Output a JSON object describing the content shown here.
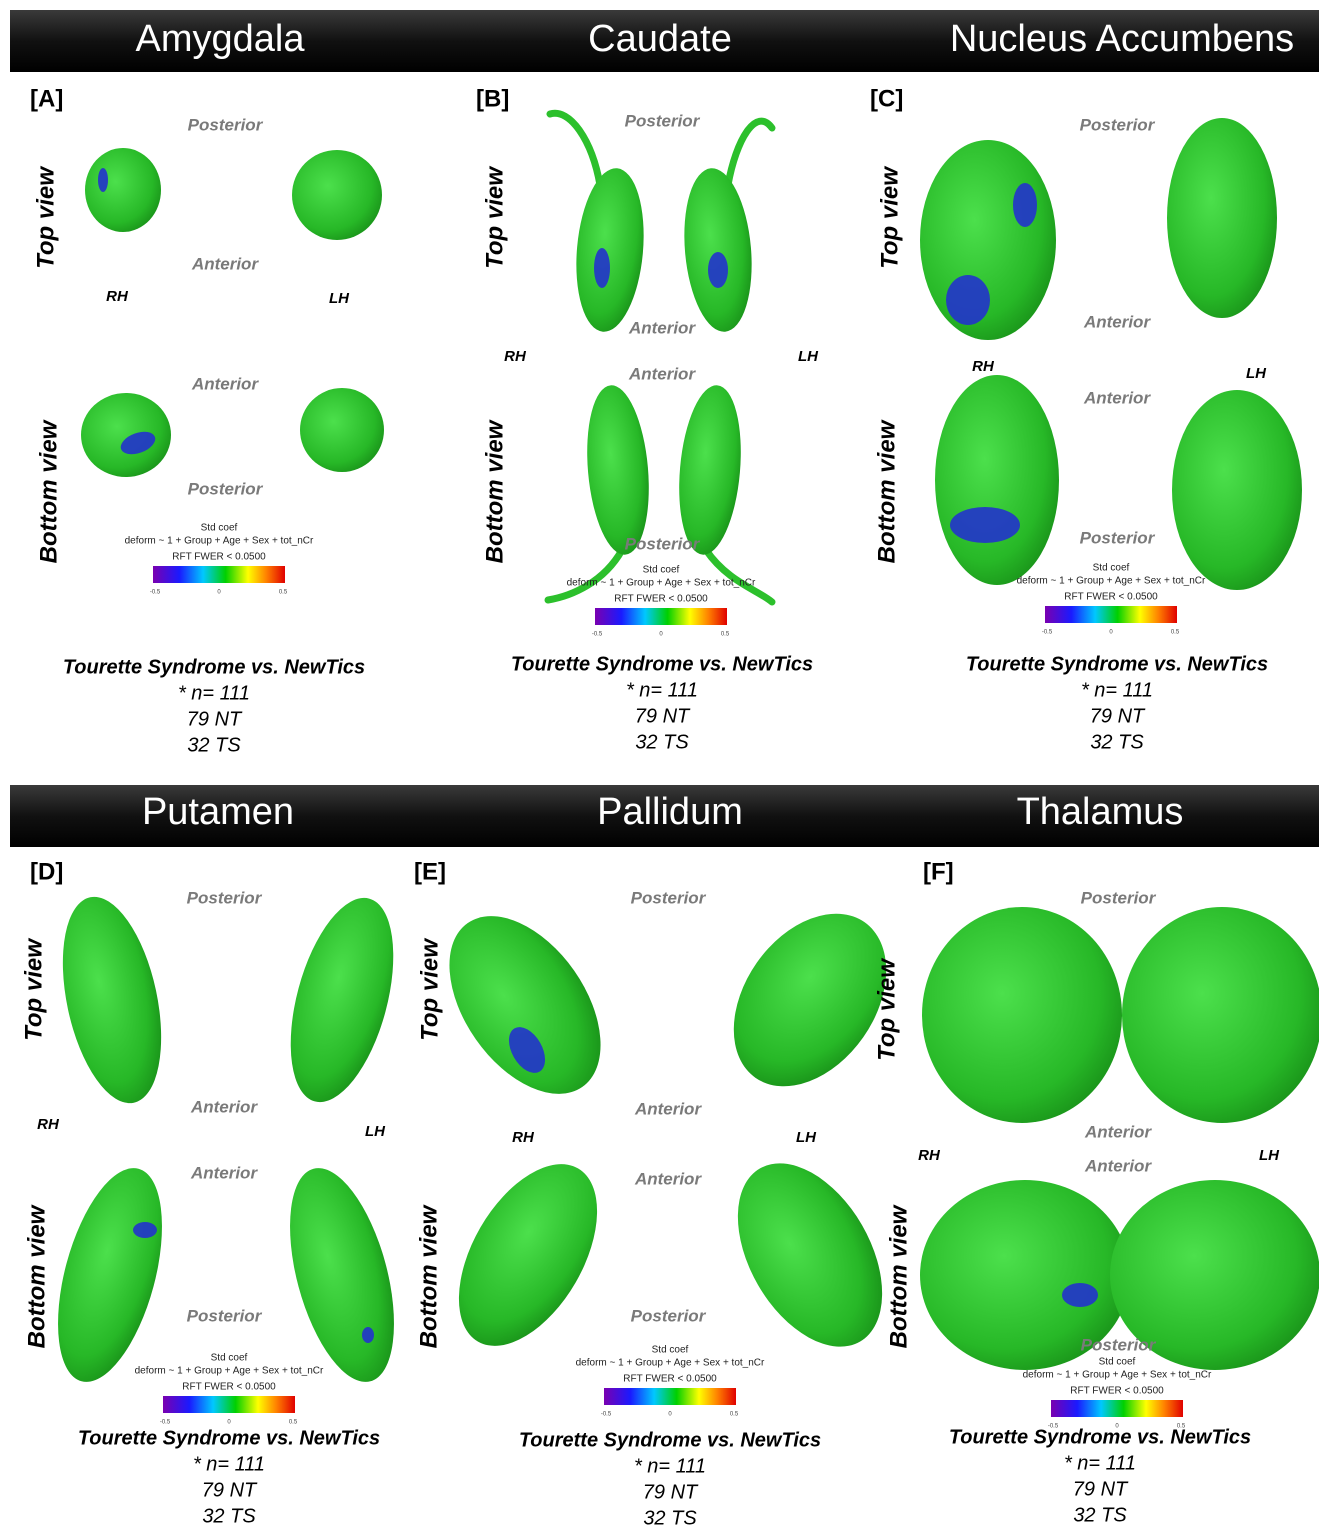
{
  "headers": [
    {
      "titles": [
        "Amygdala",
        "Caudate",
        "Nucleus Accumbens"
      ]
    },
    {
      "titles": [
        "Putamen",
        "Pallidum",
        "Thalamus"
      ]
    }
  ],
  "panels": [
    {
      "label": "[A]",
      "top_view": "Top view",
      "bottom_view": "Bottom view",
      "top_posterior": "Posterior",
      "top_anterior": "Anterior",
      "rh": "RH",
      "lh": "LH",
      "bottom_anterior": "Anterior",
      "bottom_posterior": "Posterior",
      "colorbar": {
        "title": "Std coef",
        "model": "deform ~ 1 + Group + Age + Sex + tot_nCr",
        "threshold": "RFT FWER < 0.0500",
        "ticks": [
          "-0.5",
          "0",
          "0.5"
        ]
      },
      "caption": [
        "Tourette Syndrome vs. NewTics",
        "* n= 111",
        "79 NT",
        "32 TS"
      ]
    },
    {
      "label": "[B]",
      "top_view": "Top view",
      "bottom_view": "Bottom view",
      "top_posterior": "Posterior",
      "top_anterior": "Anterior",
      "rh": "RH",
      "lh": "LH",
      "bottom_anterior": "Anterior",
      "bottom_posterior": "Posterior",
      "colorbar": {
        "title": "Std coef",
        "model": "deform ~ 1 + Group + Age + Sex + tot_nCr",
        "threshold": "RFT FWER < 0.0500",
        "ticks": [
          "-0.5",
          "0",
          "0.5"
        ]
      },
      "caption": [
        "Tourette Syndrome vs. NewTics",
        "* n= 111",
        "79 NT",
        "32 TS"
      ]
    },
    {
      "label": "[C]",
      "top_view": "Top view",
      "bottom_view": "Bottom view",
      "top_posterior": "Posterior",
      "top_anterior": "Anterior",
      "rh": "RH",
      "lh": "LH",
      "bottom_anterior": "Anterior",
      "bottom_posterior": "Posterior",
      "colorbar": {
        "title": "Std coef",
        "model": "deform ~ 1 + Group + Age + Sex + tot_nCr",
        "threshold": "RFT FWER < 0.0500",
        "ticks": [
          "-0.5",
          "0",
          "0.5"
        ]
      },
      "caption": [
        "Tourette Syndrome vs. NewTics",
        "* n= 111",
        "79 NT",
        "32 TS"
      ]
    },
    {
      "label": "[D]",
      "top_view": "Top view",
      "bottom_view": "Bottom view",
      "top_posterior": "Posterior",
      "top_anterior": "Anterior",
      "rh": "RH",
      "lh": "LH",
      "bottom_anterior": "Anterior",
      "bottom_posterior": "Posterior",
      "colorbar": {
        "title": "Std coef",
        "model": "deform ~ 1 + Group + Age + Sex + tot_nCr",
        "threshold": "RFT FWER < 0.0500",
        "ticks": [
          "-0.5",
          "0",
          "0.5"
        ]
      },
      "caption": [
        "Tourette Syndrome vs. NewTics",
        "* n= 111",
        "79 NT",
        "32 TS"
      ]
    },
    {
      "label": "[E]",
      "top_view": "Top view",
      "bottom_view": "Bottom view",
      "top_posterior": "Posterior",
      "top_anterior": "Anterior",
      "rh": "RH",
      "lh": "LH",
      "bottom_anterior": "Anterior",
      "bottom_posterior": "Posterior",
      "colorbar": {
        "title": "Std coef",
        "model": "deform ~ 1 + Group + Age + Sex + tot_nCr",
        "threshold": "RFT FWER < 0.0500",
        "ticks": [
          "-0.5",
          "0",
          "0.5"
        ]
      },
      "caption": [
        "Tourette Syndrome vs. NewTics",
        "* n= 111",
        "79 NT",
        "32 TS"
      ]
    },
    {
      "label": "[F]",
      "top_view": "Top view",
      "bottom_view": "Bottom view",
      "top_posterior": "Posterior",
      "top_anterior": "Anterior",
      "rh": "RH",
      "lh": "LH",
      "bottom_anterior": "Anterior",
      "bottom_posterior": "Posterior",
      "colorbar": {
        "title": "Std coef",
        "model": "deform ~ 1 + Group + Age + Sex + tot_nCr",
        "threshold": "RFT FWER < 0.0500",
        "ticks": [
          "-0.5",
          "0",
          "0.5"
        ]
      },
      "caption": [
        "Tourette Syndrome vs. NewTics",
        "* n= 111",
        "79 NT",
        "32 TS"
      ]
    }
  ]
}
